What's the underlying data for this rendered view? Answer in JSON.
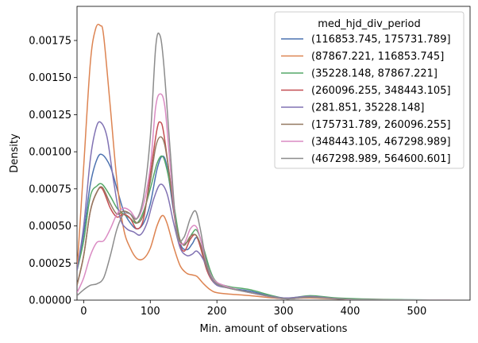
{
  "chart_data": {
    "type": "line",
    "title": "",
    "xlabel": "Min. amount of observations",
    "ylabel": "Density",
    "xlim": [
      -10,
      580
    ],
    "ylim": [
      0,
      0.00198
    ],
    "x_ticks": [
      0,
      100,
      200,
      300,
      400,
      500
    ],
    "y_ticks": [
      0.0,
      0.00025,
      0.0005,
      0.00075,
      0.001,
      0.00125,
      0.0015,
      0.00175
    ],
    "x_tick_labels": [
      "0",
      "100",
      "200",
      "300",
      "400",
      "500"
    ],
    "y_tick_labels": [
      "0.00000",
      "0.00025",
      "0.00050",
      "0.00075",
      "0.00100",
      "0.00125",
      "0.00150",
      "0.00175"
    ],
    "grid": false,
    "legend": {
      "title": "med_hjd_div_period",
      "placement": "top-right"
    },
    "series": [
      {
        "name": "(116853.745, 175731.789]",
        "color": "#4c72b0",
        "x": [
          -10,
          0,
          10,
          20,
          28,
          40,
          50,
          60,
          70,
          80,
          90,
          100,
          110,
          118,
          125,
          135,
          145,
          155,
          163,
          170,
          180,
          190,
          200,
          220,
          250,
          300,
          340,
          380,
          450,
          520,
          550
        ],
        "y": [
          0.0002,
          0.00045,
          0.00078,
          0.00095,
          0.00098,
          0.0009,
          0.00075,
          0.0006,
          0.00052,
          0.00048,
          0.00052,
          0.00065,
          0.00088,
          0.00097,
          0.0009,
          0.0006,
          0.00038,
          0.00034,
          0.00038,
          0.00042,
          0.00032,
          0.00018,
          0.00011,
          8e-05,
          6e-05,
          1e-05,
          2.5e-05,
          1e-05,
          3e-06,
          1e-06,
          0.0
        ]
      },
      {
        "name": "(87867.221, 116853.745]",
        "color": "#dd8452",
        "x": [
          -10,
          0,
          10,
          18,
          25,
          30,
          40,
          50,
          60,
          70,
          80,
          90,
          100,
          110,
          118,
          125,
          135,
          145,
          155,
          163,
          170,
          180,
          190,
          200,
          220,
          250,
          300,
          340,
          400,
          500,
          550
        ],
        "y": [
          0.0002,
          0.0009,
          0.0016,
          0.00183,
          0.00185,
          0.00178,
          0.0013,
          0.0008,
          0.00048,
          0.00035,
          0.00028,
          0.00028,
          0.00035,
          0.0005,
          0.00057,
          0.00052,
          0.00036,
          0.00023,
          0.00018,
          0.00017,
          0.00016,
          0.00011,
          7e-05,
          5e-05,
          4e-05,
          3e-05,
          1e-05,
          1.5e-05,
          5e-06,
          1e-06,
          0.0
        ]
      },
      {
        "name": "(35228.148, 87867.221]",
        "color": "#55a868",
        "x": [
          -10,
          0,
          10,
          20,
          28,
          40,
          50,
          60,
          70,
          80,
          90,
          100,
          110,
          118,
          125,
          135,
          145,
          155,
          163,
          170,
          180,
          190,
          200,
          220,
          250,
          300,
          340,
          380,
          450,
          520,
          550
        ],
        "y": [
          0.0002,
          0.0004,
          0.0007,
          0.00077,
          0.00078,
          0.0007,
          0.00062,
          0.00058,
          0.00055,
          0.00052,
          0.0006,
          0.00075,
          0.00092,
          0.00097,
          0.00088,
          0.00065,
          0.0004,
          0.00039,
          0.00045,
          0.00047,
          0.00035,
          0.0002,
          0.00012,
          9e-05,
          7e-05,
          1.5e-05,
          3e-05,
          1.5e-05,
          5e-06,
          1e-06,
          0.0
        ]
      },
      {
        "name": "(260096.255, 348443.105]",
        "color": "#c44e52",
        "x": [
          -10,
          0,
          10,
          20,
          28,
          40,
          50,
          60,
          70,
          80,
          90,
          100,
          110,
          115,
          120,
          130,
          140,
          150,
          160,
          168,
          175,
          185,
          195,
          210,
          240,
          300,
          340,
          400,
          500,
          550
        ],
        "y": [
          0.0001,
          0.0003,
          0.0006,
          0.00073,
          0.00075,
          0.00062,
          0.00056,
          0.00058,
          0.00055,
          0.00048,
          0.00055,
          0.00085,
          0.00115,
          0.0012,
          0.00113,
          0.0008,
          0.00045,
          0.00033,
          0.00041,
          0.00044,
          0.00036,
          0.0002,
          0.00012,
          9e-05,
          6e-05,
          1e-05,
          2e-05,
          5e-06,
          1e-06,
          0.0
        ]
      },
      {
        "name": "(281.851, 35228.148]",
        "color": "#8172b3",
        "x": [
          -10,
          0,
          10,
          18,
          25,
          35,
          45,
          55,
          65,
          75,
          85,
          95,
          105,
          115,
          125,
          135,
          145,
          155,
          163,
          170,
          180,
          190,
          200,
          220,
          250,
          300,
          340,
          400,
          500,
          550
        ],
        "y": [
          0.0002,
          0.0005,
          0.00095,
          0.00115,
          0.0012,
          0.0011,
          0.0008,
          0.00055,
          0.00048,
          0.00046,
          0.00044,
          0.00052,
          0.00068,
          0.00078,
          0.00072,
          0.00052,
          0.00035,
          0.0003,
          0.00031,
          0.00033,
          0.00027,
          0.00016,
          0.0001,
          8e-05,
          5e-05,
          1.5e-05,
          2.5e-05,
          5e-06,
          1e-06,
          0.0
        ]
      },
      {
        "name": "(175731.789, 260096.255]",
        "color": "#937860",
        "x": [
          -10,
          0,
          10,
          20,
          28,
          40,
          50,
          60,
          70,
          80,
          90,
          100,
          108,
          115,
          122,
          130,
          140,
          150,
          160,
          168,
          175,
          185,
          195,
          210,
          240,
          300,
          340,
          400,
          500,
          550
        ],
        "y": [
          0.0001,
          0.0003,
          0.0006,
          0.00073,
          0.00076,
          0.00065,
          0.00058,
          0.0006,
          0.00058,
          0.00052,
          0.00058,
          0.0008,
          0.00103,
          0.0011,
          0.00104,
          0.0008,
          0.00048,
          0.00037,
          0.00043,
          0.00044,
          0.00038,
          0.00022,
          0.00013,
          9e-05,
          6e-05,
          1e-05,
          2e-05,
          5e-06,
          1e-06,
          0.0
        ]
      },
      {
        "name": "(348443.105, 467298.989]",
        "color": "#da8bc3",
        "x": [
          -10,
          0,
          10,
          20,
          30,
          40,
          50,
          60,
          70,
          80,
          90,
          100,
          108,
          115,
          122,
          130,
          140,
          150,
          160,
          168,
          175,
          185,
          195,
          210,
          240,
          300,
          340,
          400,
          500,
          550
        ],
        "y": [
          5e-05,
          0.00015,
          0.0003,
          0.00039,
          0.0004,
          0.00048,
          0.00058,
          0.00062,
          0.0006,
          0.00055,
          0.00065,
          0.0009,
          0.0013,
          0.00139,
          0.0013,
          0.0009,
          0.00045,
          0.00038,
          0.00048,
          0.0005,
          0.00042,
          0.00024,
          0.00014,
          0.0001,
          6e-05,
          1e-05,
          2e-05,
          5e-06,
          1e-06,
          0.0
        ]
      },
      {
        "name": "(467298.989, 564600.601]",
        "color": "#8c8c8c",
        "x": [
          -10,
          0,
          10,
          20,
          30,
          40,
          50,
          60,
          70,
          80,
          90,
          100,
          108,
          114,
          120,
          130,
          140,
          150,
          160,
          168,
          175,
          185,
          195,
          210,
          240,
          300,
          340,
          400,
          500,
          550
        ],
        "y": [
          3e-05,
          7e-05,
          0.0001,
          0.00011,
          0.00015,
          0.0003,
          0.00048,
          0.00058,
          0.00058,
          0.00055,
          0.0007,
          0.0011,
          0.0017,
          0.00179,
          0.0016,
          0.001,
          0.00045,
          0.00042,
          0.00055,
          0.0006,
          0.00048,
          0.00024,
          0.00013,
          9e-05,
          6e-05,
          1e-05,
          2e-05,
          5e-06,
          1e-06,
          0.0
        ]
      }
    ]
  }
}
